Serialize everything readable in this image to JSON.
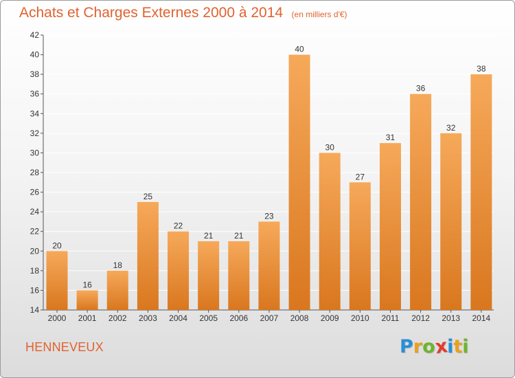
{
  "header": {
    "title": "Achats et Charges Externes 2000 à 2014",
    "unit": "(en milliers d'€)"
  },
  "footer": {
    "commune": "HENNEVEUX",
    "logo_letters": [
      {
        "char": "P",
        "color": "#2a8fd6"
      },
      {
        "char": "r",
        "color": "#e8a21c"
      },
      {
        "char": "o",
        "color": "#6cb52e"
      },
      {
        "char": "x",
        "color": "#e23b2e"
      },
      {
        "char": "i",
        "color": "#2a8fd6"
      },
      {
        "char": "t",
        "color": "#e8a21c"
      },
      {
        "char": "i",
        "color": "#6cb52e"
      }
    ]
  },
  "colors": {
    "accent": "#e0622f",
    "bar_light": "#f6a95a",
    "bar_dark": "#d9771f",
    "grid": "#ffffff",
    "axis_text": "#333333"
  },
  "chart_data": {
    "type": "bar",
    "title": "Achats et Charges Externes 2000 à 2014",
    "categories": [
      "2000",
      "2001",
      "2002",
      "2003",
      "2004",
      "2005",
      "2006",
      "2007",
      "2008",
      "2009",
      "2010",
      "2011",
      "2012",
      "2013",
      "2014"
    ],
    "values": [
      20,
      16,
      18,
      25,
      22,
      21,
      21,
      23,
      40,
      30,
      27,
      31,
      36,
      32,
      38
    ],
    "ylim": [
      14,
      42
    ],
    "yticks": [
      14,
      16,
      18,
      20,
      22,
      24,
      26,
      28,
      30,
      32,
      34,
      36,
      38,
      40,
      42
    ],
    "grid": true,
    "xlabel": "",
    "ylabel": ""
  }
}
